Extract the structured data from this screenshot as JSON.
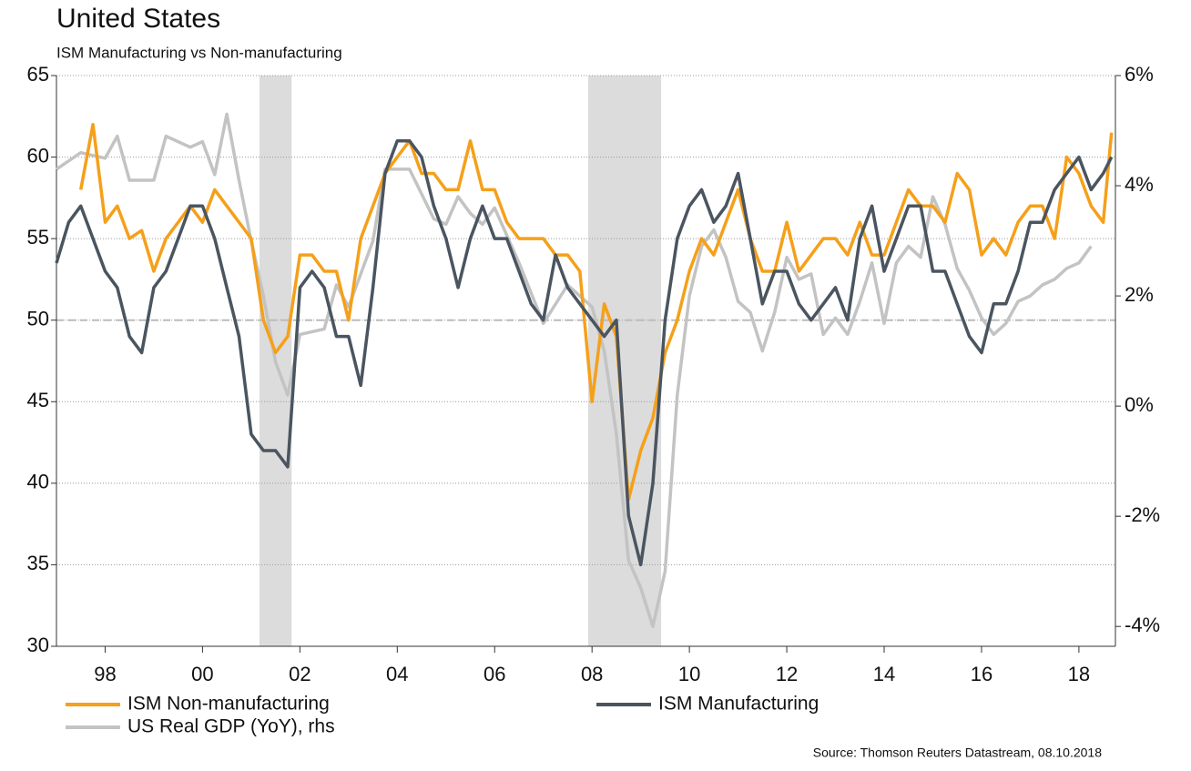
{
  "chart_data": {
    "type": "line",
    "title": "United States",
    "subtitle": "ISM Manufacturing vs Non-manufacturing",
    "source": "Source: Thomson Reuters Datastream, 08.10.2018",
    "xlim": [
      1997,
      2018.75
    ],
    "xticks": [
      {
        "value": 1998,
        "label": "98"
      },
      {
        "value": 2000,
        "label": "00"
      },
      {
        "value": 2002,
        "label": "02"
      },
      {
        "value": 2004,
        "label": "04"
      },
      {
        "value": 2006,
        "label": "06"
      },
      {
        "value": 2008,
        "label": "08"
      },
      {
        "value": 2010,
        "label": "10"
      },
      {
        "value": 2012,
        "label": "12"
      },
      {
        "value": 2014,
        "label": "14"
      },
      {
        "value": 2016,
        "label": "16"
      },
      {
        "value": 2018,
        "label": "18"
      }
    ],
    "ylim": [
      30,
      65
    ],
    "yticks": [
      30,
      35,
      40,
      45,
      50,
      55,
      60,
      65
    ],
    "y2lim": [
      -4.36,
      6
    ],
    "y2ticks": [
      {
        "value": -4,
        "label": "-4%"
      },
      {
        "value": -2,
        "label": "-2%"
      },
      {
        "value": 0,
        "label": "0%"
      },
      {
        "value": 2,
        "label": "2%"
      },
      {
        "value": 4,
        "label": "4%"
      },
      {
        "value": 6,
        "label": "6%"
      }
    ],
    "grid": true,
    "reference_line": 50,
    "recessions": [
      [
        2001.17,
        2001.83
      ],
      [
        2007.92,
        2009.42
      ]
    ],
    "series": [
      {
        "name": "ISM Non-manufacturing",
        "color": "#f5a01a",
        "axis": "y",
        "x": [
          1997.5,
          1997.75,
          1998,
          1998.25,
          1998.5,
          1998.75,
          1999,
          1999.25,
          1999.5,
          1999.75,
          2000,
          2000.25,
          2000.5,
          2000.75,
          2001,
          2001.25,
          2001.5,
          2001.75,
          2002,
          2002.25,
          2002.5,
          2002.75,
          2003,
          2003.25,
          2003.5,
          2003.75,
          2004,
          2004.25,
          2004.5,
          2004.75,
          2005,
          2005.25,
          2005.5,
          2005.75,
          2006,
          2006.25,
          2006.5,
          2006.75,
          2007,
          2007.25,
          2007.5,
          2007.75,
          2008,
          2008.25,
          2008.5,
          2008.75,
          2009,
          2009.25,
          2009.5,
          2009.75,
          2010,
          2010.25,
          2010.5,
          2010.75,
          2011,
          2011.25,
          2011.5,
          2011.75,
          2012,
          2012.25,
          2012.5,
          2012.75,
          2013,
          2013.25,
          2013.5,
          2013.75,
          2014,
          2014.25,
          2014.5,
          2014.75,
          2015,
          2015.25,
          2015.5,
          2015.75,
          2016,
          2016.25,
          2016.5,
          2016.75,
          2017,
          2017.25,
          2017.5,
          2017.75,
          2018,
          2018.25,
          2018.5,
          2018.67
        ],
        "values": [
          58,
          62,
          56,
          57,
          55,
          55.5,
          53,
          55,
          56,
          57,
          56,
          58,
          57,
          56,
          55,
          50,
          48,
          49,
          54,
          54,
          53,
          53,
          50,
          55,
          57,
          59,
          60,
          61,
          59,
          59,
          58,
          58,
          61,
          58,
          58,
          56,
          55,
          55,
          55,
          54,
          54,
          53,
          45,
          51,
          49,
          39,
          42,
          44,
          48,
          50,
          53,
          55,
          54,
          56,
          58,
          55,
          53,
          53,
          56,
          53,
          54,
          55,
          55,
          54,
          56,
          54,
          54,
          56,
          58,
          57,
          57,
          56,
          59,
          58,
          54,
          55,
          54,
          56,
          57,
          57,
          55,
          60,
          59,
          57,
          56,
          61.5
        ]
      },
      {
        "name": "ISM Manufacturing",
        "color": "#4a5560",
        "axis": "y",
        "x": [
          1997,
          1997.25,
          1997.5,
          1997.75,
          1998,
          1998.25,
          1998.5,
          1998.75,
          1999,
          1999.25,
          1999.5,
          1999.75,
          2000,
          2000.25,
          2000.5,
          2000.75,
          2001,
          2001.25,
          2001.5,
          2001.75,
          2002,
          2002.25,
          2002.5,
          2002.75,
          2003,
          2003.25,
          2003.5,
          2003.75,
          2004,
          2004.25,
          2004.5,
          2004.75,
          2005,
          2005.25,
          2005.5,
          2005.75,
          2006,
          2006.25,
          2006.5,
          2006.75,
          2007,
          2007.25,
          2007.5,
          2007.75,
          2008,
          2008.25,
          2008.5,
          2008.75,
          2009,
          2009.25,
          2009.5,
          2009.75,
          2010,
          2010.25,
          2010.5,
          2010.75,
          2011,
          2011.25,
          2011.5,
          2011.75,
          2012,
          2012.25,
          2012.5,
          2012.75,
          2013,
          2013.25,
          2013.5,
          2013.75,
          2014,
          2014.25,
          2014.5,
          2014.75,
          2015,
          2015.25,
          2015.5,
          2015.75,
          2016,
          2016.25,
          2016.5,
          2016.75,
          2017,
          2017.25,
          2017.5,
          2017.75,
          2018,
          2018.25,
          2018.5,
          2018.67
        ],
        "values": [
          53.5,
          56,
          57,
          55,
          53,
          52,
          49,
          48,
          52,
          53,
          55,
          57,
          57,
          55,
          52,
          49,
          43,
          42,
          42,
          41,
          52,
          53,
          52,
          49,
          49,
          46,
          52,
          59,
          61,
          61,
          60,
          57,
          55,
          52,
          55,
          57,
          55,
          55,
          53,
          51,
          50,
          54,
          52,
          51,
          50,
          49,
          50,
          38,
          35,
          40,
          50,
          55,
          57,
          58,
          56,
          57,
          59,
          55,
          51,
          53,
          53,
          51,
          50,
          51,
          52,
          50,
          55,
          57,
          53,
          55,
          57,
          57,
          53,
          53,
          51,
          49,
          48,
          51,
          51,
          53,
          56,
          56,
          58,
          59,
          60,
          58,
          59,
          60
        ]
      },
      {
        "name": "US Real GDP (YoY), rhs",
        "color": "#c3c3c3",
        "axis": "y2",
        "x": [
          1997,
          1997.5,
          1998,
          1998.25,
          1998.5,
          1999,
          1999.25,
          1999.75,
          2000,
          2000.25,
          2000.5,
          2000.75,
          2001,
          2001.25,
          2001.5,
          2001.75,
          2002,
          2002.5,
          2002.75,
          2003,
          2003.5,
          2003.75,
          2004.25,
          2004.75,
          2005,
          2005.25,
          2005.5,
          2005.75,
          2006,
          2006.5,
          2007,
          2007.5,
          2008,
          2008.25,
          2008.5,
          2008.75,
          2009,
          2009.25,
          2009.5,
          2009.75,
          2010,
          2010.25,
          2010.5,
          2010.75,
          2011,
          2011.25,
          2011.5,
          2011.75,
          2012,
          2012.25,
          2012.5,
          2012.75,
          2013,
          2013.25,
          2013.5,
          2013.75,
          2014,
          2014.25,
          2014.5,
          2014.75,
          2015,
          2015.25,
          2015.5,
          2015.75,
          2016,
          2016.25,
          2016.5,
          2016.75,
          2017,
          2017.25,
          2017.5,
          2017.75,
          2018,
          2018.25
        ],
        "values": [
          4.3,
          4.6,
          4.5,
          4.9,
          4.1,
          4.1,
          4.9,
          4.7,
          4.8,
          4.2,
          5.3,
          4.1,
          3.0,
          2.0,
          0.8,
          0.2,
          1.3,
          1.4,
          2.2,
          1.8,
          3.0,
          4.3,
          4.3,
          3.4,
          3.3,
          3.8,
          3.5,
          3.3,
          3.6,
          2.6,
          1.5,
          2.2,
          1.8,
          1.0,
          -0.5,
          -2.8,
          -3.3,
          -4.0,
          -3.0,
          0.2,
          2.0,
          2.9,
          3.2,
          2.7,
          1.9,
          1.7,
          1.0,
          1.7,
          2.7,
          2.3,
          2.4,
          1.3,
          1.6,
          1.3,
          1.9,
          2.6,
          1.5,
          2.6,
          2.9,
          2.7,
          3.8,
          3.3,
          2.5,
          2.1,
          1.6,
          1.3,
          1.5,
          1.9,
          2.0,
          2.2,
          2.3,
          2.5,
          2.6,
          2.9
        ]
      }
    ]
  }
}
